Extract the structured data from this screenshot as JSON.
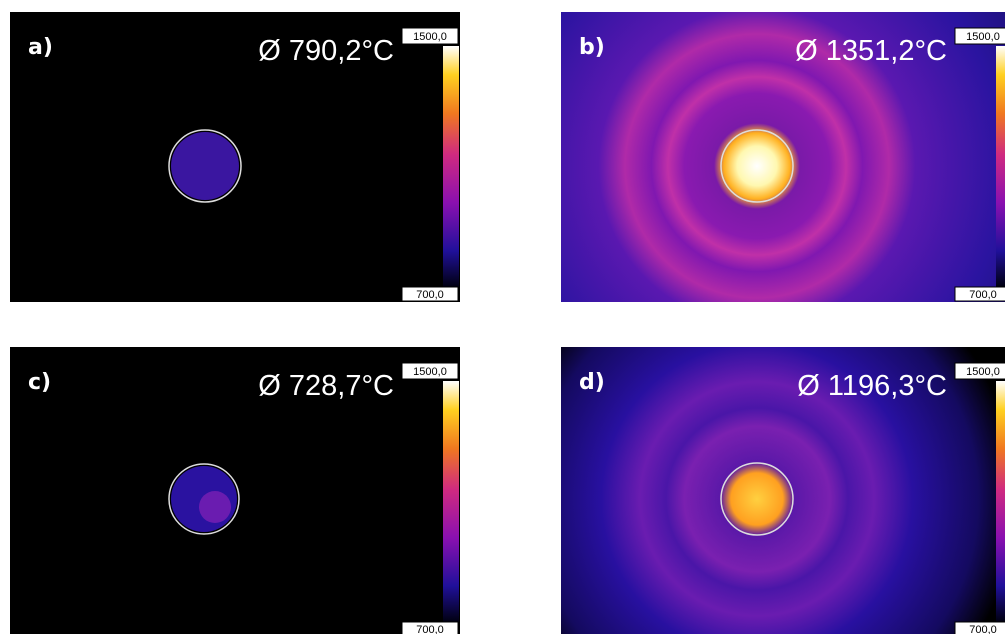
{
  "panels": [
    {
      "label": "a)",
      "reading": "Ø 790,2°C",
      "scale_max": "1500,0",
      "scale_min": "700,0"
    },
    {
      "label": "b)",
      "reading": "Ø 1351,2°C",
      "scale_max": "1500,0",
      "scale_min": "700,0"
    },
    {
      "label": "c)",
      "reading": "Ø 728,7°C",
      "scale_max": "1500,0",
      "scale_min": "700,0"
    },
    {
      "label": "d)",
      "reading": "Ø 1196,3°C",
      "scale_max": "1500,0",
      "scale_min": "700,0"
    }
  ]
}
